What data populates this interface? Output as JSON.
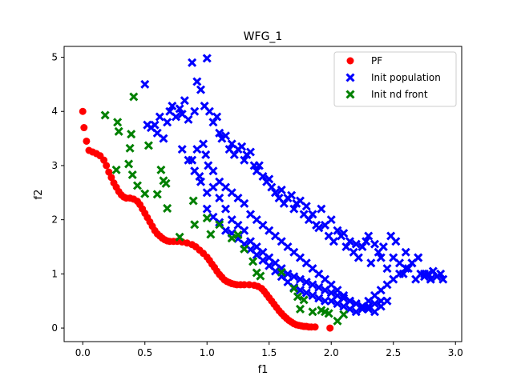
{
  "chart_data": {
    "type": "scatter",
    "title": "WFG_1",
    "xlabel": "f1",
    "ylabel": "f2",
    "xlim": [
      -0.15,
      3.05
    ],
    "ylim": [
      -0.25,
      5.2
    ],
    "xticks": [
      "0.0",
      "0.5",
      "1.0",
      "1.5",
      "2.0",
      "2.5",
      "3.0"
    ],
    "xtick_values": [
      0.0,
      0.5,
      1.0,
      1.5,
      2.0,
      2.5,
      3.0
    ],
    "yticks": [
      "0",
      "1",
      "2",
      "3",
      "4",
      "5"
    ],
    "ytick_values": [
      0,
      1,
      2,
      3,
      4,
      5
    ],
    "grid": false,
    "legend_position": "top-right",
    "series": [
      {
        "name": "PF",
        "marker": "circle",
        "color": "#ff0000",
        "x": [
          0.0,
          0.01,
          0.03,
          0.05,
          0.08,
          0.11,
          0.14,
          0.17,
          0.19,
          0.21,
          0.23,
          0.25,
          0.27,
          0.29,
          0.31,
          0.33,
          0.35,
          0.38,
          0.41,
          0.44,
          0.46,
          0.48,
          0.5,
          0.52,
          0.54,
          0.56,
          0.58,
          0.6,
          0.62,
          0.64,
          0.66,
          0.68,
          0.7,
          0.73,
          0.76,
          0.8,
          0.84,
          0.88,
          0.91,
          0.94,
          0.97,
          1.0,
          1.02,
          1.04,
          1.06,
          1.08,
          1.1,
          1.12,
          1.14,
          1.16,
          1.18,
          1.2,
          1.22,
          1.24,
          1.27,
          1.3,
          1.34,
          1.38,
          1.41,
          1.44,
          1.46,
          1.48,
          1.5,
          1.52,
          1.54,
          1.56,
          1.58,
          1.6,
          1.62,
          1.64,
          1.66,
          1.68,
          1.7,
          1.72,
          1.74,
          1.76,
          1.78,
          1.8,
          1.82,
          1.84,
          1.87,
          1.99
        ],
        "y": [
          4.0,
          3.7,
          3.45,
          3.28,
          3.25,
          3.22,
          3.18,
          3.1,
          3.0,
          2.88,
          2.78,
          2.68,
          2.6,
          2.52,
          2.46,
          2.42,
          2.4,
          2.4,
          2.38,
          2.34,
          2.28,
          2.2,
          2.12,
          2.04,
          1.96,
          1.88,
          1.8,
          1.74,
          1.7,
          1.66,
          1.63,
          1.61,
          1.6,
          1.6,
          1.6,
          1.59,
          1.57,
          1.54,
          1.5,
          1.44,
          1.38,
          1.31,
          1.25,
          1.18,
          1.12,
          1.05,
          0.99,
          0.94,
          0.89,
          0.86,
          0.84,
          0.82,
          0.81,
          0.8,
          0.8,
          0.8,
          0.8,
          0.79,
          0.77,
          0.73,
          0.68,
          0.62,
          0.56,
          0.5,
          0.44,
          0.38,
          0.32,
          0.27,
          0.22,
          0.18,
          0.14,
          0.11,
          0.08,
          0.06,
          0.05,
          0.04,
          0.03,
          0.03,
          0.02,
          0.02,
          0.02,
          0.0
        ]
      },
      {
        "name": "Init population",
        "marker": "x",
        "color": "#0000ff",
        "x": [
          0.5,
          0.55,
          0.58,
          0.6,
          0.62,
          0.65,
          0.68,
          0.7,
          0.72,
          0.75,
          0.78,
          0.8,
          0.82,
          0.85,
          0.88,
          0.9,
          0.92,
          0.95,
          0.98,
          1.0,
          1.02,
          1.05,
          1.08,
          1.1,
          1.12,
          1.15,
          1.18,
          1.2,
          1.22,
          1.25,
          1.28,
          1.3,
          1.32,
          1.35,
          1.38,
          1.4,
          1.42,
          1.45,
          1.48,
          1.5,
          1.52,
          1.55,
          1.58,
          1.6,
          1.62,
          1.65,
          1.68,
          1.7,
          1.72,
          1.75,
          1.78,
          1.8,
          1.82,
          1.85,
          1.88,
          1.9,
          1.92,
          1.95,
          1.98,
          2.0,
          2.02,
          2.05,
          2.08,
          2.1,
          2.12,
          2.15,
          2.18,
          2.2,
          2.22,
          2.25,
          2.28,
          2.3,
          2.32,
          2.35,
          2.38,
          2.4,
          2.42,
          2.45,
          2.48,
          2.5,
          2.52,
          2.55,
          2.58,
          2.6,
          2.62,
          2.65,
          2.68,
          2.7,
          2.72,
          2.75,
          2.78,
          2.8,
          2.82,
          2.85,
          2.88,
          2.9,
          0.52,
          0.88,
          0.92,
          0.99,
          0.94,
          1.01,
          1.05,
          0.97,
          1.1,
          1.15,
          1.2,
          1.25,
          1.3,
          1.35,
          1.4,
          1.45,
          1.5,
          1.55,
          1.6,
          1.65,
          1.7,
          1.75,
          1.8,
          1.85,
          1.9,
          1.95,
          2.0,
          2.05,
          2.1,
          2.15,
          2.2,
          2.25,
          2.3,
          2.35,
          2.4,
          2.45,
          0.8,
          0.85,
          0.9,
          0.95,
          1.0,
          1.05,
          1.1,
          1.15,
          1.2,
          1.25,
          1.3,
          1.35,
          1.4,
          1.45,
          1.5,
          1.55,
          1.6,
          1.65,
          1.7,
          1.75,
          1.8,
          1.85,
          1.9,
          1.95,
          2.0,
          2.05,
          2.1,
          2.15,
          2.2,
          2.25,
          2.3,
          2.35,
          2.4,
          2.45,
          2.5,
          2.55,
          2.6,
          2.65,
          2.7,
          2.75,
          2.8,
          1.0,
          1.05,
          1.1,
          1.15,
          1.2,
          1.25,
          1.3,
          1.35,
          1.4,
          1.45,
          1.5,
          1.55,
          1.6,
          1.65,
          1.7,
          1.75,
          1.8,
          1.85,
          1.9,
          1.95,
          2.0,
          2.05,
          2.1,
          2.15,
          2.2,
          2.25,
          2.3,
          2.35,
          2.4
        ],
        "y": [
          4.5,
          3.7,
          3.75,
          3.6,
          3.9,
          3.5,
          3.8,
          4.0,
          4.1,
          3.9,
          4.05,
          3.95,
          4.2,
          3.85,
          4.9,
          4.0,
          4.55,
          4.4,
          4.1,
          4.98,
          4.0,
          3.8,
          3.9,
          3.6,
          3.5,
          3.55,
          3.3,
          3.4,
          3.2,
          3.3,
          3.35,
          3.1,
          3.2,
          3.25,
          3.0,
          2.9,
          3.0,
          2.8,
          2.7,
          2.75,
          2.6,
          2.5,
          2.4,
          2.55,
          2.3,
          2.4,
          2.45,
          2.2,
          2.3,
          2.35,
          2.1,
          2.25,
          2.0,
          2.1,
          1.9,
          1.85,
          2.2,
          1.9,
          1.7,
          2.0,
          1.6,
          1.8,
          1.7,
          1.75,
          1.5,
          1.6,
          1.4,
          1.55,
          1.3,
          1.5,
          1.6,
          1.7,
          1.2,
          1.55,
          1.4,
          1.3,
          1.5,
          1.1,
          1.7,
          1.3,
          1.6,
          1.2,
          1.0,
          1.4,
          1.1,
          1.2,
          0.9,
          1.3,
          1.0,
          0.95,
          1.0,
          0.9,
          1.05,
          0.95,
          1.0,
          0.9,
          3.75,
          3.1,
          3.3,
          3.2,
          2.8,
          3.0,
          2.9,
          3.4,
          2.7,
          2.6,
          2.5,
          2.4,
          2.3,
          2.1,
          2.0,
          1.9,
          1.8,
          1.7,
          1.6,
          1.5,
          1.4,
          1.3,
          1.2,
          1.1,
          1.0,
          0.9,
          0.8,
          0.7,
          0.6,
          0.5,
          0.45,
          0.4,
          0.35,
          0.3,
          0.4,
          0.5,
          3.3,
          3.1,
          2.9,
          2.7,
          2.5,
          2.6,
          2.4,
          2.2,
          2.0,
          1.9,
          1.8,
          1.6,
          1.5,
          1.4,
          1.3,
          1.2,
          1.1,
          1.0,
          0.95,
          0.9,
          0.85,
          0.8,
          0.75,
          0.7,
          0.65,
          0.6,
          0.55,
          0.5,
          0.45,
          0.4,
          0.5,
          0.6,
          0.7,
          0.8,
          0.9,
          1.0,
          1.1,
          1.2,
          1.3,
          1.0,
          0.9,
          2.2,
          2.05,
          1.95,
          1.8,
          1.75,
          1.65,
          1.55,
          1.45,
          1.35,
          1.25,
          1.15,
          1.05,
          0.95,
          0.85,
          0.75,
          0.7,
          0.65,
          0.6,
          0.55,
          0.5,
          0.5,
          0.45,
          0.4,
          0.35,
          0.3,
          0.35,
          0.4,
          0.45,
          0.5
        ]
      },
      {
        "name": "Init nd front",
        "marker": "x",
        "color": "#008000",
        "x": [
          0.18,
          0.28,
          0.29,
          0.27,
          0.39,
          0.38,
          0.41,
          0.44,
          0.53,
          0.37,
          0.4,
          0.5,
          0.63,
          0.65,
          0.67,
          0.68,
          0.6,
          0.78,
          0.89,
          0.9,
          1.0,
          1.03,
          1.1,
          1.2,
          1.25,
          1.3,
          1.37,
          1.4,
          1.43,
          1.6,
          1.7,
          1.73,
          1.75,
          1.78,
          1.85,
          1.92,
          1.95,
          1.98,
          2.05,
          2.1
        ],
        "y": [
          3.93,
          3.8,
          3.63,
          2.92,
          3.58,
          3.32,
          4.27,
          2.63,
          3.37,
          3.03,
          2.83,
          2.48,
          2.92,
          2.72,
          2.67,
          2.21,
          2.47,
          1.68,
          2.35,
          1.91,
          2.03,
          1.73,
          1.91,
          1.66,
          1.72,
          1.46,
          1.23,
          1.02,
          0.96,
          1.03,
          0.73,
          0.58,
          0.35,
          0.52,
          0.3,
          0.33,
          0.3,
          0.27,
          0.13,
          0.25
        ]
      }
    ]
  }
}
